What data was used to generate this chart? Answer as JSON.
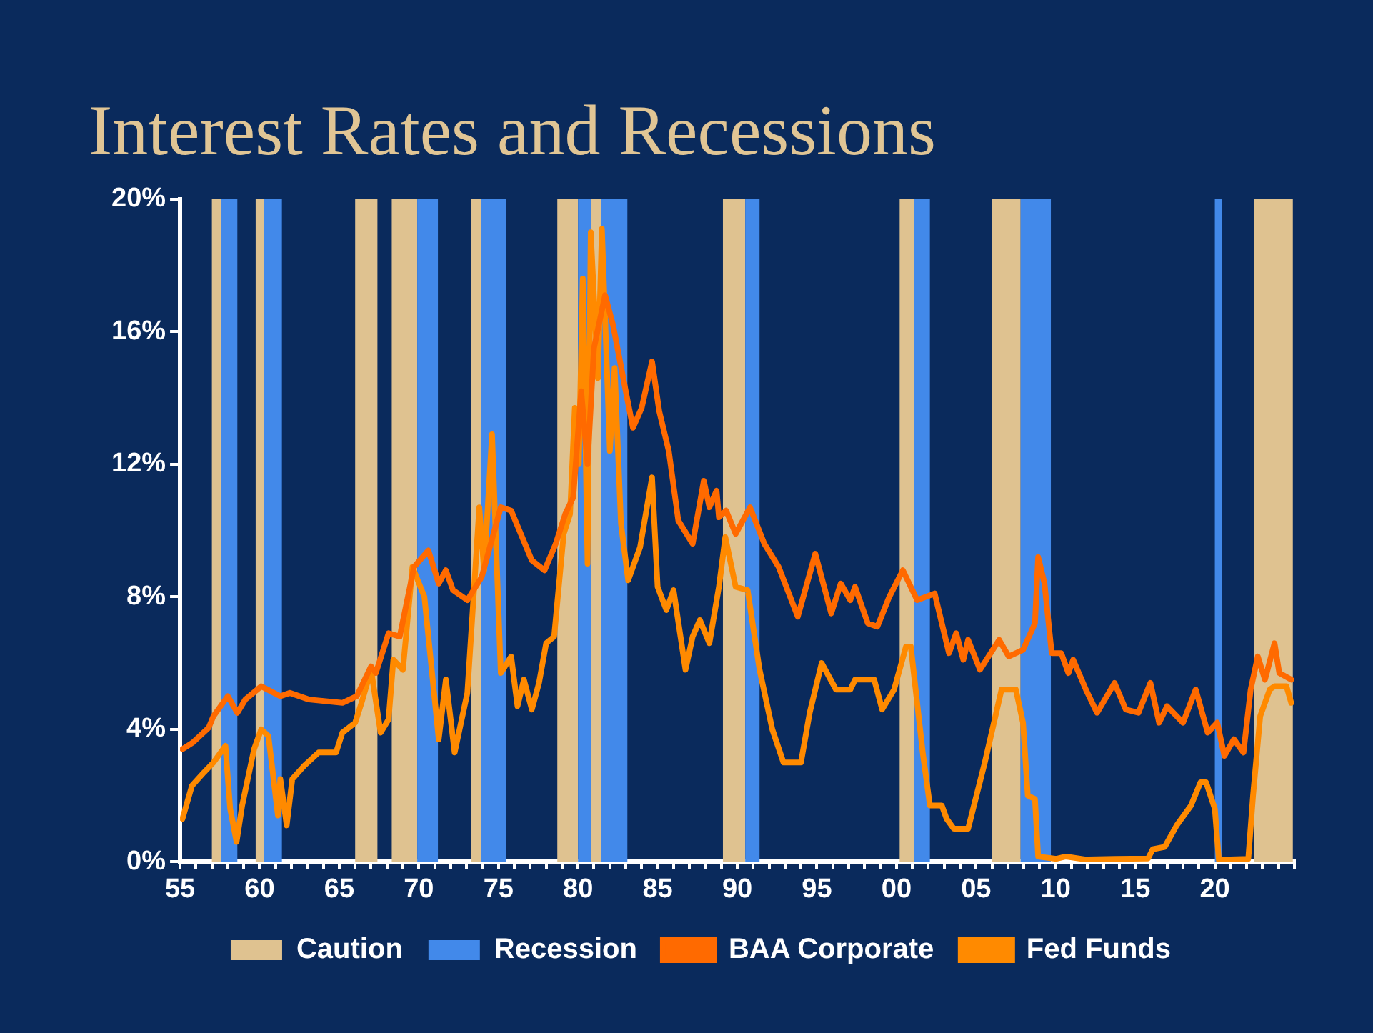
{
  "chart_data": {
    "type": "line",
    "title": "Interest Rates and Recessions",
    "xlim": [
      1955,
      2025
    ],
    "xticks": [
      {
        "value": 1955,
        "label": "55"
      },
      {
        "value": 1956,
        "label": null
      },
      {
        "value": 1957,
        "label": null
      },
      {
        "value": 1958,
        "label": null
      },
      {
        "value": 1959,
        "label": null
      },
      {
        "value": 1960,
        "label": "60"
      },
      {
        "value": 1961,
        "label": null
      },
      {
        "value": 1962,
        "label": null
      },
      {
        "value": 1963,
        "label": null
      },
      {
        "value": 1964,
        "label": null
      },
      {
        "value": 1965,
        "label": "65"
      },
      {
        "value": 1966,
        "label": null
      },
      {
        "value": 1967,
        "label": null
      },
      {
        "value": 1968,
        "label": null
      },
      {
        "value": 1969,
        "label": null
      },
      {
        "value": 1970,
        "label": "70"
      },
      {
        "value": 1971,
        "label": null
      },
      {
        "value": 1972,
        "label": null
      },
      {
        "value": 1973,
        "label": null
      },
      {
        "value": 1974,
        "label": null
      },
      {
        "value": 1975,
        "label": "75"
      },
      {
        "value": 1976,
        "label": null
      },
      {
        "value": 1977,
        "label": null
      },
      {
        "value": 1978,
        "label": null
      },
      {
        "value": 1979,
        "label": null
      },
      {
        "value": 1980,
        "label": "80"
      },
      {
        "value": 1981,
        "label": null
      },
      {
        "value": 1982,
        "label": null
      },
      {
        "value": 1983,
        "label": null
      },
      {
        "value": 1984,
        "label": null
      },
      {
        "value": 1985,
        "label": "85"
      },
      {
        "value": 1986,
        "label": null
      },
      {
        "value": 1987,
        "label": null
      },
      {
        "value": 1988,
        "label": null
      },
      {
        "value": 1989,
        "label": null
      },
      {
        "value": 1990,
        "label": "90"
      },
      {
        "value": 1991,
        "label": null
      },
      {
        "value": 1992,
        "label": null
      },
      {
        "value": 1993,
        "label": null
      },
      {
        "value": 1994,
        "label": null
      },
      {
        "value": 1995,
        "label": "95"
      },
      {
        "value": 1996,
        "label": null
      },
      {
        "value": 1997,
        "label": null
      },
      {
        "value": 1998,
        "label": null
      },
      {
        "value": 1999,
        "label": null
      },
      {
        "value": 2000,
        "label": "00"
      },
      {
        "value": 2001,
        "label": null
      },
      {
        "value": 2002,
        "label": null
      },
      {
        "value": 2003,
        "label": null
      },
      {
        "value": 2004,
        "label": null
      },
      {
        "value": 2005,
        "label": "05"
      },
      {
        "value": 2006,
        "label": null
      },
      {
        "value": 2007,
        "label": null
      },
      {
        "value": 2008,
        "label": null
      },
      {
        "value": 2009,
        "label": null
      },
      {
        "value": 2010,
        "label": "10"
      },
      {
        "value": 2011,
        "label": null
      },
      {
        "value": 2012,
        "label": null
      },
      {
        "value": 2013,
        "label": null
      },
      {
        "value": 2014,
        "label": null
      },
      {
        "value": 2015,
        "label": "15"
      },
      {
        "value": 2016,
        "label": null
      },
      {
        "value": 2017,
        "label": null
      },
      {
        "value": 2018,
        "label": null
      },
      {
        "value": 2019,
        "label": null
      },
      {
        "value": 2020,
        "label": "20"
      },
      {
        "value": 2021,
        "label": null
      },
      {
        "value": 2022,
        "label": null
      },
      {
        "value": 2023,
        "label": null
      },
      {
        "value": 2024,
        "label": null
      },
      {
        "value": 2025,
        "label": null
      }
    ],
    "ylim": [
      0,
      20
    ],
    "yticks": [
      {
        "value": 0,
        "label": "0%"
      },
      {
        "value": 4,
        "label": "4%"
      },
      {
        "value": 8,
        "label": "8%"
      },
      {
        "value": 12,
        "label": "12%"
      },
      {
        "value": 16,
        "label": "16%"
      },
      {
        "value": 20,
        "label": "20%"
      }
    ],
    "legend": "bottom",
    "bands": [
      {
        "axis": "x",
        "from": 1957.0,
        "to": 1957.6,
        "label": "Caution",
        "color": "#dfc290"
      },
      {
        "axis": "x",
        "from": 1957.6,
        "to": 1958.6,
        "label": "Recession",
        "color": "#4289ea"
      },
      {
        "axis": "x",
        "from": 1959.75,
        "to": 1960.25,
        "color": "#dfc290"
      },
      {
        "axis": "x",
        "from": 1960.25,
        "to": 1961.4,
        "color": "#4289ea"
      },
      {
        "axis": "x",
        "from": 1966.0,
        "to": 1967.4,
        "color": "#dfc290"
      },
      {
        "axis": "x",
        "from": 1968.3,
        "to": 1969.9,
        "color": "#dfc290"
      },
      {
        "axis": "x",
        "from": 1969.9,
        "to": 1971.2,
        "color": "#4289ea"
      },
      {
        "axis": "x",
        "from": 1973.3,
        "to": 1973.9,
        "color": "#dfc290"
      },
      {
        "axis": "x",
        "from": 1973.9,
        "to": 1975.5,
        "color": "#4289ea"
      },
      {
        "axis": "x",
        "from": 1978.7,
        "to": 1980.0,
        "color": "#dfc290"
      },
      {
        "axis": "x",
        "from": 1980.0,
        "to": 1980.8,
        "color": "#4289ea"
      },
      {
        "axis": "x",
        "from": 1980.8,
        "to": 1981.45,
        "color": "#dfc290"
      },
      {
        "axis": "x",
        "from": 1981.45,
        "to": 1983.1,
        "color": "#4289ea"
      },
      {
        "axis": "x",
        "from": 1989.1,
        "to": 1990.5,
        "color": "#dfc290"
      },
      {
        "axis": "x",
        "from": 1990.5,
        "to": 1991.4,
        "color": "#4289ea"
      },
      {
        "axis": "x",
        "from": 2000.2,
        "to": 2001.1,
        "color": "#dfc290"
      },
      {
        "axis": "x",
        "from": 2001.1,
        "to": 2002.1,
        "color": "#4289ea"
      },
      {
        "axis": "x",
        "from": 2006.0,
        "to": 2007.8,
        "color": "#dfc290"
      },
      {
        "axis": "x",
        "from": 2007.8,
        "to": 2009.7,
        "color": "#4289ea"
      },
      {
        "axis": "x",
        "from": 2020.0,
        "to": 2020.45,
        "color": "#4289ea"
      },
      {
        "axis": "x",
        "from": 2022.45,
        "to": 2024.9,
        "color": "#dfc290"
      }
    ],
    "series": [
      {
        "name": "BAA Corporate",
        "color": "#ff6a00",
        "x": [
          1955.15,
          1955.8,
          1956.8,
          1957.1,
          1958.0,
          1958.6,
          1959.1,
          1960.1,
          1961.3,
          1961.9,
          1963.1,
          1965.2,
          1966.1,
          1967.0,
          1967.3,
          1968.1,
          1968.8,
          1969.7,
          1970.6,
          1971.25,
          1971.7,
          1972.15,
          1973.05,
          1973.95,
          1975.15,
          1975.8,
          1977.1,
          1977.9,
          1978.6,
          1979.2,
          1979.7,
          1980.2,
          1980.6,
          1981.0,
          1981.7,
          1982.2,
          1983.0,
          1983.45,
          1984.0,
          1984.65,
          1985.1,
          1985.7,
          1986.3,
          1987.2,
          1987.9,
          1988.25,
          1988.7,
          1988.85,
          1989.3,
          1989.9,
          1990.8,
          1991.7,
          1992.6,
          1993.8,
          1994.9,
          1995.9,
          1996.5,
          1997.1,
          1997.4,
          1998.2,
          1998.8,
          1999.55,
          2000.4,
          2001.3,
          2002.4,
          2003.3,
          2003.75,
          2004.2,
          2004.5,
          2005.25,
          2006.45,
          2007.05,
          2007.95,
          2008.7,
          2008.9,
          2009.3,
          2009.75,
          2010.35,
          2010.8,
          2011.1,
          2011.9,
          2012.6,
          2013.7,
          2014.4,
          2015.2,
          2015.95,
          2016.5,
          2017.0,
          2018.0,
          2018.8,
          2019.55,
          2020.15,
          2020.6,
          2021.2,
          2021.8,
          2022.25,
          2022.7,
          2023.15,
          2023.75,
          2024.05,
          2024.8
        ],
        "values": [
          3.4,
          3.6,
          4.05,
          4.4,
          5.0,
          4.5,
          4.9,
          5.3,
          5.0,
          5.1,
          4.9,
          4.8,
          5.0,
          5.9,
          5.7,
          6.9,
          6.8,
          8.9,
          9.4,
          8.4,
          8.8,
          8.2,
          7.9,
          8.6,
          10.7,
          10.6,
          9.1,
          8.8,
          9.6,
          10.5,
          11.0,
          14.2,
          12.0,
          15.5,
          17.1,
          16.2,
          14.2,
          13.1,
          13.7,
          15.1,
          13.6,
          12.4,
          10.3,
          9.6,
          11.5,
          10.7,
          11.2,
          10.4,
          10.6,
          9.9,
          10.7,
          9.6,
          8.9,
          7.4,
          9.3,
          7.5,
          8.4,
          7.9,
          8.3,
          7.2,
          7.1,
          8.0,
          8.8,
          7.9,
          8.1,
          6.3,
          6.9,
          6.1,
          6.7,
          5.8,
          6.7,
          6.2,
          6.4,
          7.2,
          9.2,
          8.4,
          6.3,
          6.3,
          5.7,
          6.1,
          5.2,
          4.5,
          5.4,
          4.6,
          4.5,
          5.4,
          4.2,
          4.7,
          4.2,
          5.2,
          3.9,
          4.2,
          3.2,
          3.7,
          3.3,
          5.2,
          6.2,
          5.5,
          6.6,
          5.7,
          5.5
        ]
      },
      {
        "name": "Fed Funds",
        "color": "#ff8a00",
        "x": [
          1955.15,
          1955.75,
          1956.5,
          1957.1,
          1957.85,
          1958.15,
          1958.55,
          1958.9,
          1959.65,
          1960.1,
          1960.55,
          1961.15,
          1961.3,
          1961.7,
          1962.05,
          1962.8,
          1963.7,
          1964.8,
          1965.2,
          1966.0,
          1966.4,
          1967.0,
          1967.6,
          1968.1,
          1968.4,
          1969.0,
          1969.6,
          1970.35,
          1971.25,
          1971.7,
          1972.25,
          1973.05,
          1973.8,
          1974.1,
          1974.6,
          1975.15,
          1975.8,
          1976.2,
          1976.6,
          1977.1,
          1977.55,
          1978.0,
          1978.5,
          1979.1,
          1979.5,
          1979.8,
          1980.05,
          1980.3,
          1980.6,
          1980.8,
          1981.25,
          1981.5,
          1982.0,
          1982.3,
          1982.7,
          1983.15,
          1983.9,
          1984.65,
          1985.0,
          1985.55,
          1986.0,
          1986.75,
          1987.2,
          1987.65,
          1988.25,
          1988.85,
          1989.25,
          1989.9,
          1990.65,
          1991.4,
          1992.2,
          1992.9,
          1994.0,
          1994.55,
          1995.3,
          1996.2,
          1997.1,
          1997.4,
          1998.6,
          1999.1,
          1999.85,
          2000.6,
          2000.9,
          2001.65,
          2002.1,
          2002.85,
          2003.15,
          2003.6,
          2004.5,
          2005.55,
          2006.6,
          2007.5,
          2007.95,
          2008.25,
          2008.7,
          2008.9,
          2010.05,
          2010.65,
          2011.9,
          2013.7,
          2015.8,
          2016.1,
          2016.85,
          2017.6,
          2018.5,
          2019.1,
          2019.45,
          2020.0,
          2020.25,
          2022.1,
          2022.4,
          2022.85,
          2023.45,
          2023.75,
          2024.5,
          2024.8
        ],
        "values": [
          1.3,
          2.3,
          2.7,
          3.0,
          3.5,
          1.6,
          0.6,
          1.7,
          3.4,
          4.0,
          3.8,
          1.4,
          2.5,
          1.1,
          2.5,
          2.9,
          3.3,
          3.3,
          3.9,
          4.2,
          4.8,
          5.8,
          3.9,
          4.3,
          6.1,
          5.8,
          8.9,
          8.0,
          3.7,
          5.5,
          3.3,
          5.1,
          10.7,
          8.8,
          12.9,
          5.7,
          6.2,
          4.7,
          5.5,
          4.6,
          5.4,
          6.6,
          6.8,
          9.9,
          10.5,
          13.7,
          12.0,
          17.6,
          9.0,
          19.0,
          14.6,
          19.1,
          12.4,
          14.9,
          10.2,
          8.5,
          9.5,
          11.6,
          8.3,
          7.6,
          8.2,
          5.8,
          6.8,
          7.3,
          6.6,
          8.3,
          9.8,
          8.3,
          8.2,
          5.8,
          4.0,
          3.0,
          3.0,
          4.5,
          6.0,
          5.2,
          5.2,
          5.5,
          5.5,
          4.6,
          5.2,
          6.5,
          6.5,
          3.3,
          1.7,
          1.7,
          1.3,
          1.0,
          1.0,
          3.0,
          5.2,
          5.2,
          4.2,
          2.0,
          1.9,
          0.16,
          0.09,
          0.16,
          0.07,
          0.09,
          0.1,
          0.38,
          0.45,
          1.1,
          1.7,
          2.4,
          2.4,
          1.6,
          0.06,
          0.09,
          2.0,
          4.4,
          5.2,
          5.3,
          5.3,
          4.8
        ]
      }
    ]
  }
}
